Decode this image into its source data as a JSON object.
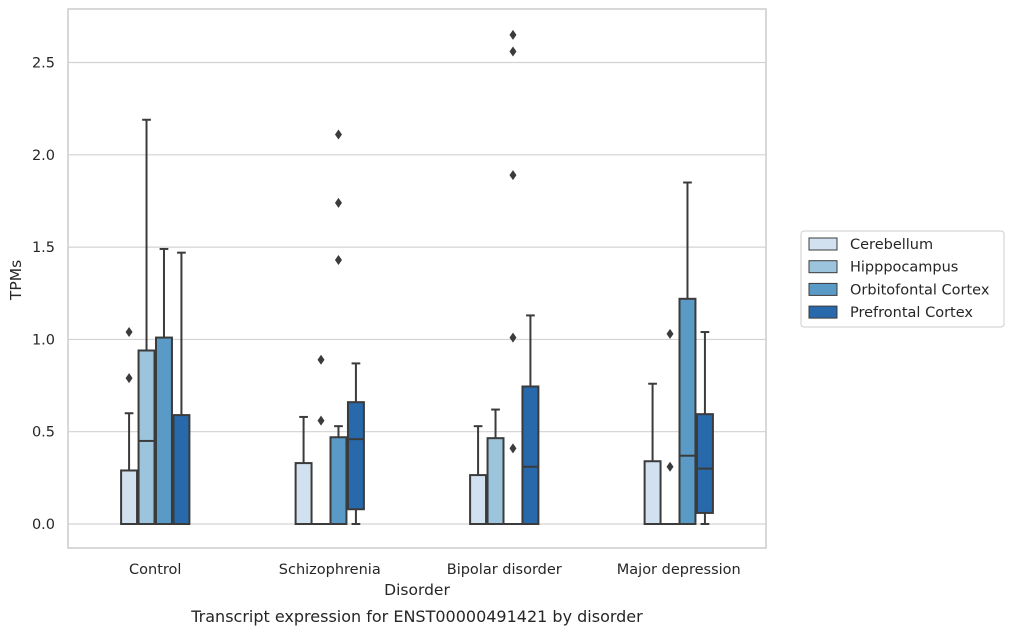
{
  "chart_data": {
    "type": "box",
    "title": "",
    "caption": "Transcript expression for ENST00000491421 by disorder",
    "xlabel": "Disorder",
    "ylabel": "TPMs",
    "ylim": [
      -0.13,
      2.79
    ],
    "yticks": [
      0.0,
      0.5,
      1.0,
      1.5,
      2.0,
      2.5
    ],
    "ytick_labels": [
      "0.0",
      "0.5",
      "1.0",
      "1.5",
      "2.0",
      "2.5"
    ],
    "grid": "horizontal",
    "legend_position": "right",
    "categories": [
      "Control",
      "Schizophrenia",
      "Bipolar disorder",
      "Major depression"
    ],
    "series": [
      {
        "name": "Cerebellum",
        "color": "#d1e1f0",
        "boxes": [
          {
            "q1": 0.0,
            "median": 0.0,
            "q3": 0.29,
            "whisker_low": 0.0,
            "whisker_high": 0.6,
            "outliers": [
              0.79,
              1.04
            ]
          },
          {
            "q1": 0.0,
            "median": 0.0,
            "q3": 0.33,
            "whisker_low": 0.0,
            "whisker_high": 0.58,
            "outliers": []
          },
          {
            "q1": 0.0,
            "median": 0.0,
            "q3": 0.265,
            "whisker_low": 0.0,
            "whisker_high": 0.53,
            "outliers": []
          },
          {
            "q1": 0.0,
            "median": 0.0,
            "q3": 0.34,
            "whisker_low": 0.0,
            "whisker_high": 0.76,
            "outliers": []
          }
        ]
      },
      {
        "name": "Hipppocampus",
        "color": "#9dc4dd",
        "boxes": [
          {
            "q1": 0.0,
            "median": 0.45,
            "q3": 0.94,
            "whisker_low": 0.0,
            "whisker_high": 2.19,
            "outliers": []
          },
          {
            "q1": 0.0,
            "median": 0.0,
            "q3": 0.0,
            "whisker_low": 0.0,
            "whisker_high": 0.0,
            "outliers": [
              0.56,
              0.89
            ]
          },
          {
            "q1": 0.0,
            "median": 0.0,
            "q3": 0.465,
            "whisker_low": 0.0,
            "whisker_high": 0.62,
            "outliers": []
          },
          {
            "q1": 0.0,
            "median": 0.0,
            "q3": 0.0,
            "whisker_low": 0.0,
            "whisker_high": 0.0,
            "outliers": [
              0.31,
              1.03
            ]
          }
        ]
      },
      {
        "name": "Orbitofontal Cortex",
        "color": "#5a9ac6",
        "boxes": [
          {
            "q1": 0.0,
            "median": 0.0,
            "q3": 1.01,
            "whisker_low": 0.0,
            "whisker_high": 1.49,
            "outliers": []
          },
          {
            "q1": 0.0,
            "median": 0.0,
            "q3": 0.47,
            "whisker_low": 0.0,
            "whisker_high": 0.53,
            "outliers": [
              1.43,
              1.74,
              2.11
            ]
          },
          {
            "q1": 0.0,
            "median": 0.0,
            "q3": 0.0,
            "whisker_low": 0.0,
            "whisker_high": 0.0,
            "outliers": [
              0.41,
              1.01,
              1.89,
              2.56,
              2.65
            ]
          },
          {
            "q1": 0.0,
            "median": 0.37,
            "q3": 1.22,
            "whisker_low": 0.0,
            "whisker_high": 1.85,
            "outliers": []
          }
        ]
      },
      {
        "name": "Prefrontal Cortex",
        "color": "#2869ab",
        "boxes": [
          {
            "q1": 0.0,
            "median": 0.0,
            "q3": 0.59,
            "whisker_low": 0.0,
            "whisker_high": 1.47,
            "outliers": []
          },
          {
            "q1": 0.08,
            "median": 0.46,
            "q3": 0.66,
            "whisker_low": 0.0,
            "whisker_high": 0.87,
            "outliers": []
          },
          {
            "q1": 0.0,
            "median": 0.31,
            "q3": 0.745,
            "whisker_low": 0.0,
            "whisker_high": 1.13,
            "outliers": []
          },
          {
            "q1": 0.06,
            "median": 0.3,
            "q3": 0.595,
            "whisker_low": 0.0,
            "whisker_high": 1.04,
            "outliers": []
          }
        ]
      }
    ]
  }
}
